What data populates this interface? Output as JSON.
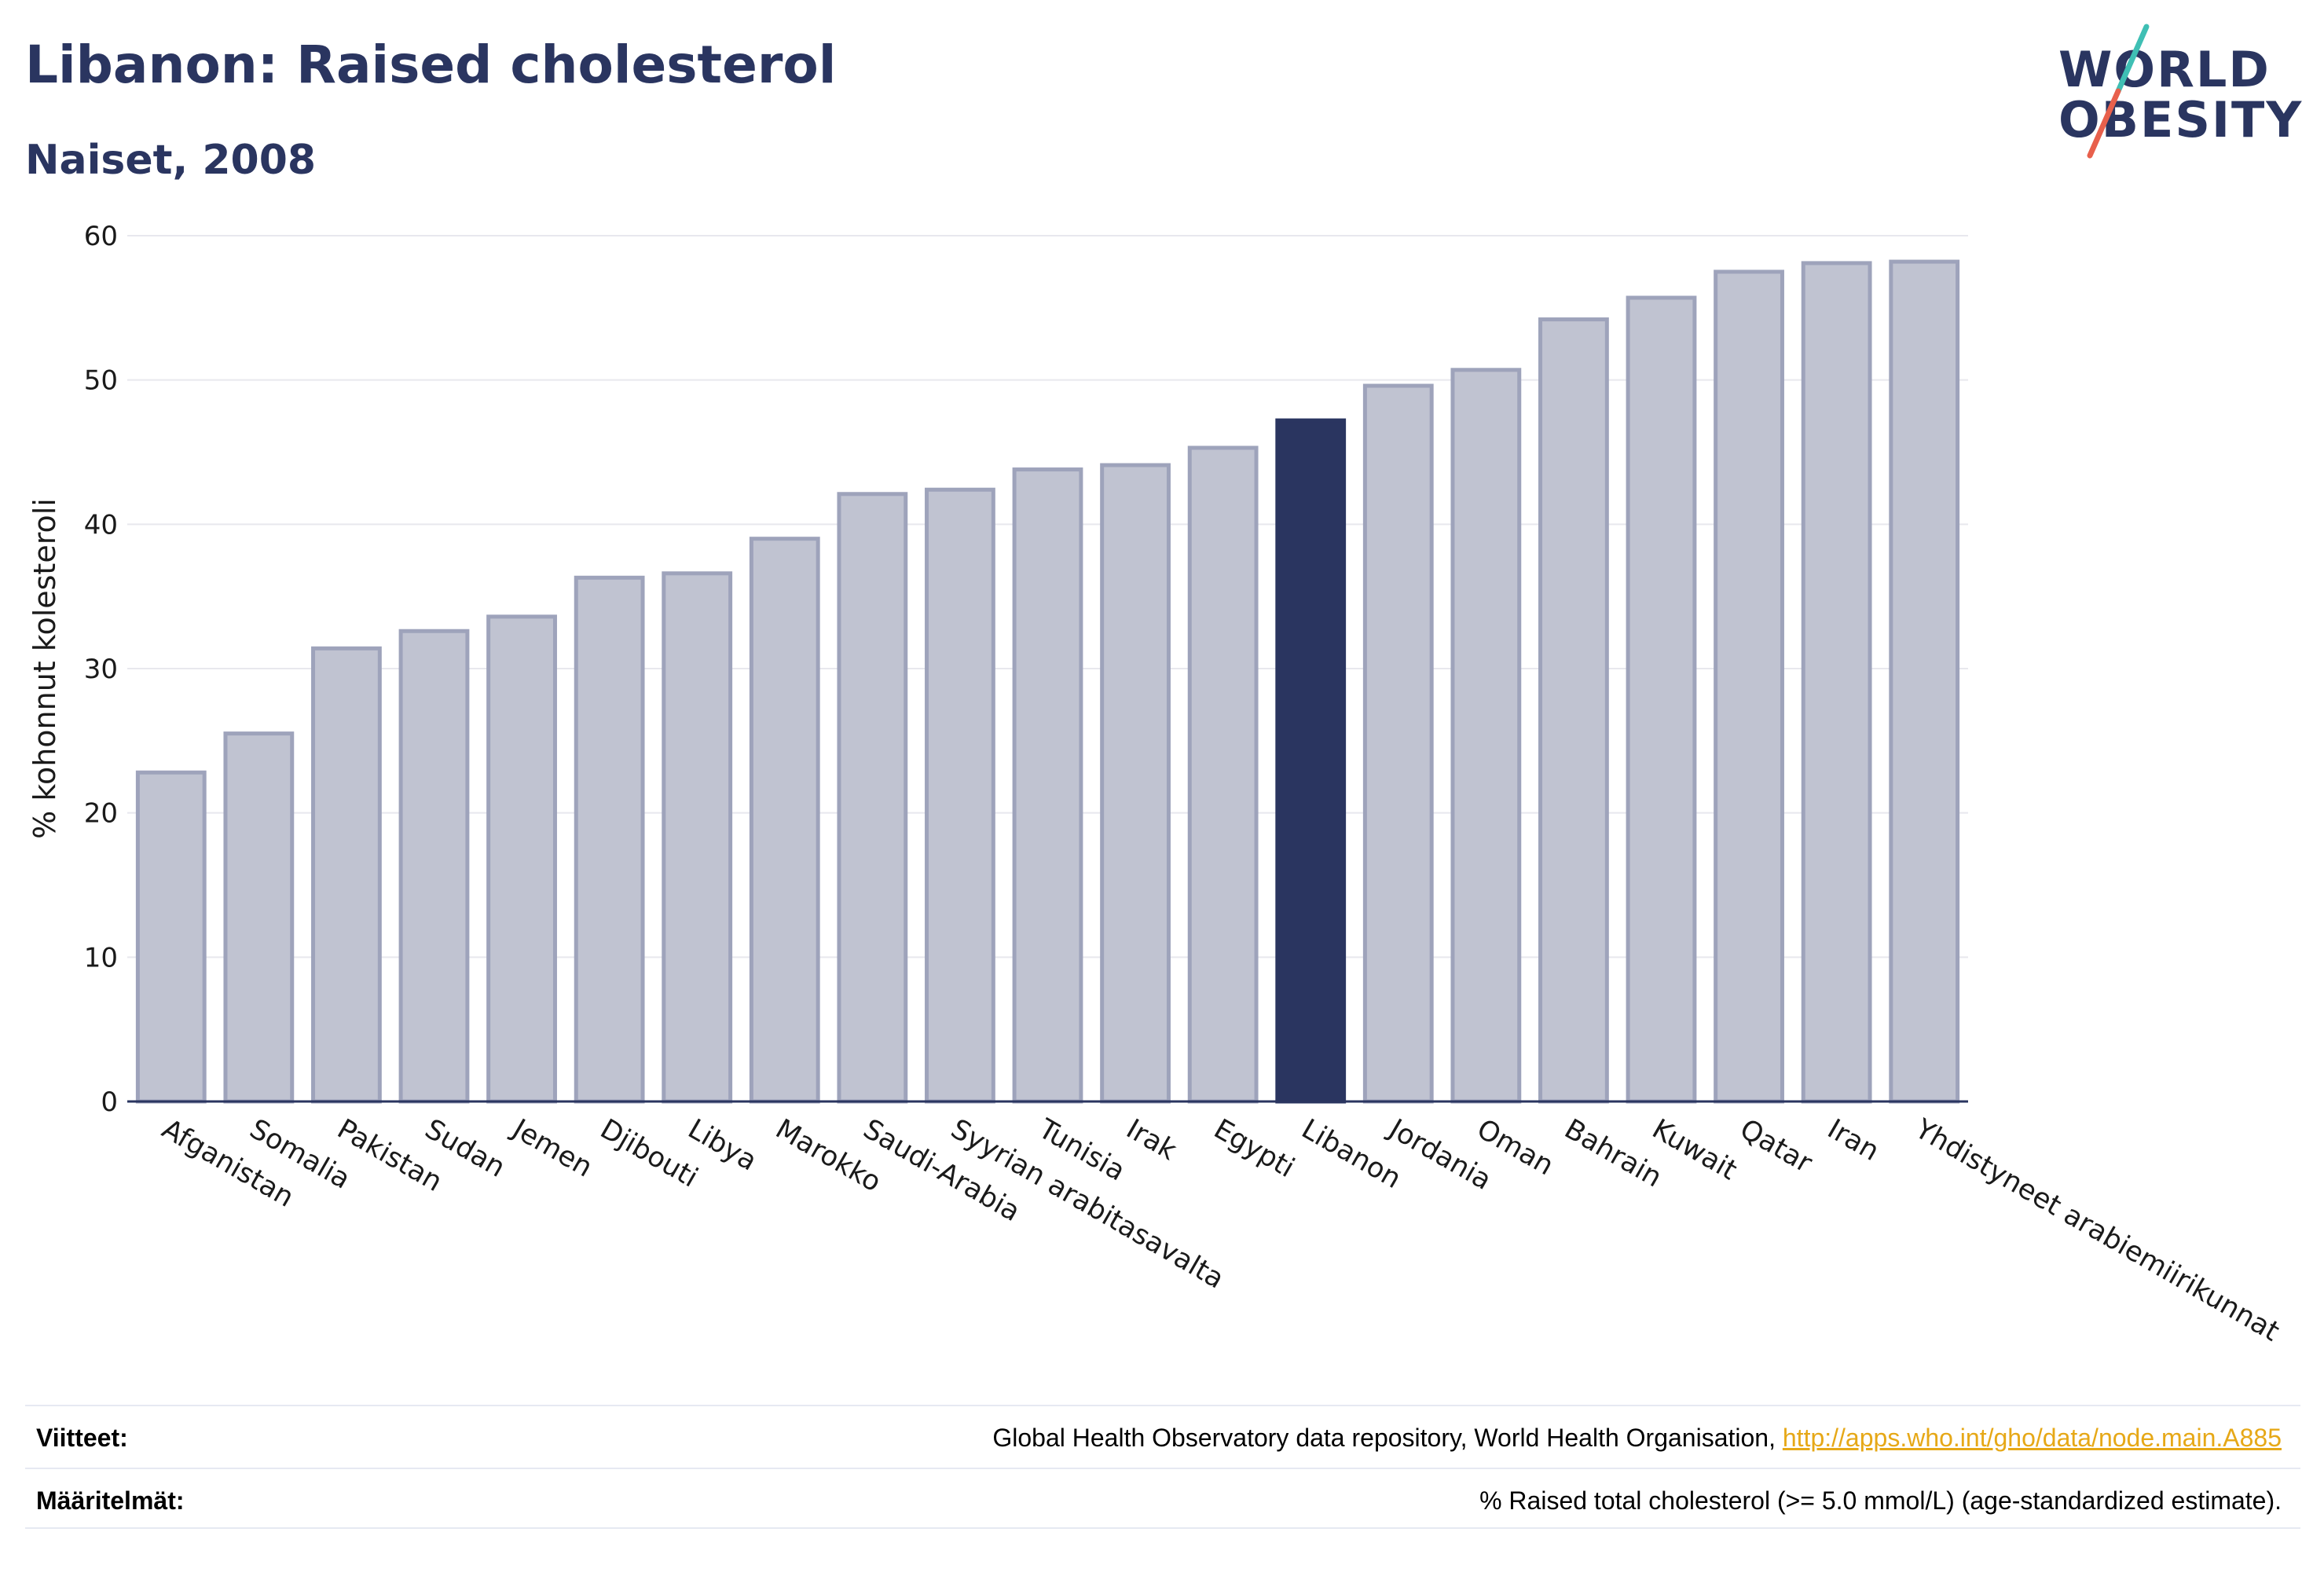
{
  "header": {
    "title": "Libanon: Raised cholesterol",
    "subtitle": "Naiset, 2008"
  },
  "logo": {
    "line1": "WORLD",
    "line2": "OBESITY",
    "slash_colors": [
      "#3fbfb4",
      "#e8604c"
    ]
  },
  "colors": {
    "bar": "#c0c3d1",
    "bar_border": "#9ea3bb",
    "highlight": "#2a3560",
    "axis_text": "#1a1a1a",
    "grid": "#e8e8ee"
  },
  "chart_data": {
    "type": "bar",
    "title": "",
    "xlabel": "",
    "ylabel": "% kohonnut kolesteroli",
    "ylim": [
      0,
      60
    ],
    "yticks": [
      0,
      10,
      20,
      30,
      40,
      50,
      60
    ],
    "grid": true,
    "highlight": "Libanon",
    "categories": [
      "Afganistan",
      "Somalia",
      "Pakistan",
      "Sudan",
      "Jemen",
      "Djibouti",
      "Libya",
      "Marokko",
      "Saudi-Arabia",
      "Syyrian arabitasavalta",
      "Tunisia",
      "Irak",
      "Egypti",
      "Libanon",
      "Jordania",
      "Oman",
      "Bahrain",
      "Kuwait",
      "Qatar",
      "Iran",
      "Yhdistyneet arabiemiirikunnat"
    ],
    "values": [
      22.8,
      25.5,
      31.4,
      32.6,
      33.6,
      36.3,
      36.6,
      39.0,
      42.1,
      42.4,
      43.8,
      44.1,
      45.3,
      47.2,
      49.6,
      50.7,
      54.2,
      55.7,
      57.5,
      58.1,
      58.2
    ]
  },
  "footer": {
    "sources_label": "Viitteet:",
    "sources_text": "Global Health Observatory data repository, World Health Organisation, ",
    "sources_link": "http://apps.who.int/gho/data/node.main.A885",
    "definitions_label": "Määritelmät:",
    "definitions_text": "% Raised total cholesterol (>= 5.0 mmol/L) (age-standardized estimate)."
  }
}
